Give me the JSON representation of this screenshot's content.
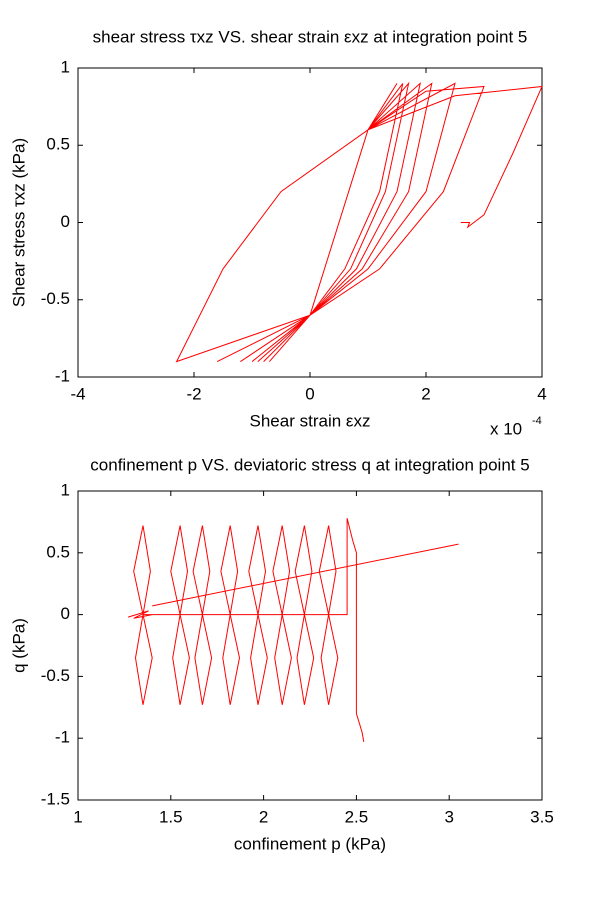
{
  "chart_data": [
    {
      "type": "line",
      "title": "shear stress τxz VS. shear strain εxz at integration point 5",
      "xlabel": "Shear strain εxz",
      "ylabel": "Shear stress τxz (kPa)",
      "x_offset_label": "x 10",
      "x_offset_exponent": "-4",
      "xlim": [
        -4,
        4
      ],
      "ylim": [
        -1,
        1
      ],
      "xticks": [
        -4,
        -2,
        0,
        2,
        4
      ],
      "yticks": [
        -1,
        -0.5,
        0,
        0.5,
        1
      ],
      "series": [
        {
          "color": "#ff0000",
          "x": [
            2.6,
            2.75,
            2.72,
            3.0,
            3.5,
            4.0,
            2.5,
            1.0,
            -0.5,
            -1.5,
            -2.3,
            0,
            1,
            2,
            3.0,
            2.3,
            1.2,
            0,
            -1.6,
            0,
            1,
            2.5,
            2.0,
            1.0,
            0,
            -1.2,
            0,
            1,
            2.1,
            1.7,
            0.9,
            0,
            -1.0,
            0,
            1,
            1.9,
            1.5,
            0.8,
            0,
            -0.9,
            0,
            1,
            1.7,
            1.3,
            0.7,
            0,
            -0.8,
            0,
            1,
            1.6,
            1.2,
            0.6,
            0,
            -0.7,
            0,
            1,
            1.5
          ],
          "y": [
            0,
            0,
            -0.03,
            0.05,
            0.45,
            0.88,
            0.82,
            0.6,
            0.2,
            -0.3,
            -0.9,
            -0.6,
            0.6,
            0.85,
            0.88,
            0.2,
            -0.3,
            -0.6,
            -0.9,
            -0.6,
            0.6,
            0.9,
            0.2,
            -0.3,
            -0.6,
            -0.9,
            -0.6,
            0.6,
            0.9,
            0.2,
            -0.3,
            -0.6,
            -0.9,
            -0.6,
            0.6,
            0.9,
            0.2,
            -0.3,
            -0.6,
            -0.9,
            -0.6,
            0.6,
            0.9,
            0.2,
            -0.3,
            -0.6,
            -0.9,
            -0.6,
            0.6,
            0.9,
            0.2,
            -0.3,
            -0.6,
            -0.9,
            -0.6,
            0.6,
            0.9
          ]
        }
      ]
    },
    {
      "type": "line",
      "title": "confinement p VS. deviatoric stress q at integration point 5",
      "xlabel": "confinement p (kPa)",
      "ylabel": "q (kPa)",
      "xlim": [
        1,
        3.5
      ],
      "ylim": [
        -1.5,
        1
      ],
      "xticks": [
        1,
        1.5,
        2,
        2.5,
        3,
        3.5
      ],
      "yticks": [
        -1.5,
        -1,
        -0.5,
        0,
        0.5,
        1
      ],
      "series": [
        {
          "color": "#ff0000",
          "x": [
            1.27,
            1.38,
            1.3,
            1.4,
            1.35,
            1.3,
            1.35,
            1.39,
            1.35,
            1.31,
            1.35,
            1.4,
            1.35,
            1.55,
            1.5,
            1.55,
            1.59,
            1.55,
            1.51,
            1.55,
            1.6,
            1.55,
            1.67,
            1.62,
            1.67,
            1.71,
            1.67,
            1.63,
            1.67,
            1.72,
            1.67,
            1.82,
            1.77,
            1.82,
            1.86,
            1.82,
            1.78,
            1.82,
            1.87,
            1.82,
            1.97,
            1.92,
            1.97,
            2.01,
            1.97,
            1.93,
            1.97,
            2.02,
            1.97,
            2.1,
            2.05,
            2.1,
            2.14,
            2.1,
            2.06,
            2.1,
            2.15,
            2.1,
            2.22,
            2.17,
            2.22,
            2.26,
            2.22,
            2.18,
            2.22,
            2.27,
            2.22,
            2.35,
            2.3,
            2.35,
            2.39,
            2.35,
            2.31,
            2.35,
            2.4,
            2.35,
            2.45,
            2.45,
            2.48,
            2.5,
            2.5,
            2.53,
            2.54,
            null,
            1.4,
            3.05
          ],
          "y": [
            -0.02,
            0.03,
            -0.03,
            0.0,
            0,
            0.35,
            0.72,
            0.35,
            0,
            -0.35,
            -0.73,
            -0.35,
            0,
            0,
            0.35,
            0.72,
            0.35,
            0,
            -0.35,
            -0.73,
            -0.35,
            0,
            0,
            0.35,
            0.72,
            0.35,
            0,
            -0.35,
            -0.73,
            -0.35,
            0,
            0,
            0.35,
            0.72,
            0.35,
            0,
            -0.35,
            -0.73,
            -0.35,
            0,
            0,
            0.35,
            0.72,
            0.35,
            0,
            -0.35,
            -0.73,
            -0.35,
            0,
            0,
            0.35,
            0.72,
            0.35,
            0,
            -0.35,
            -0.73,
            -0.35,
            0,
            0,
            0.35,
            0.72,
            0.35,
            0,
            -0.35,
            -0.73,
            -0.35,
            0,
            0,
            0.35,
            0.72,
            0.35,
            0,
            -0.35,
            -0.73,
            -0.35,
            0,
            0,
            0.78,
            0.6,
            0.5,
            -0.8,
            -0.95,
            -1.03,
            null,
            0.07,
            0.57
          ]
        }
      ]
    }
  ]
}
